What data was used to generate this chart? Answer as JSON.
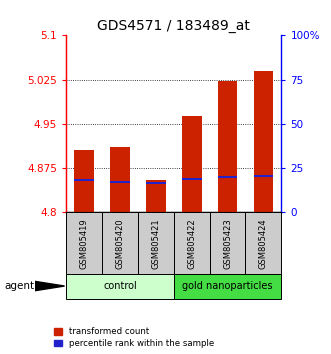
{
  "title": "GDS4571 / 183489_at",
  "samples": [
    "GSM805419",
    "GSM805420",
    "GSM805421",
    "GSM805422",
    "GSM805423",
    "GSM805424"
  ],
  "bar_base": 4.8,
  "red_tops": [
    4.906,
    4.91,
    4.855,
    4.963,
    5.022,
    5.04
  ],
  "blue_vals": [
    4.855,
    4.852,
    4.85,
    4.856,
    4.86,
    4.862
  ],
  "ylim_min": 4.8,
  "ylim_max": 5.1,
  "yticks_left": [
    4.8,
    4.875,
    4.95,
    5.025,
    5.1
  ],
  "yticks_right_vals": [
    0,
    25,
    50,
    75,
    100
  ],
  "yticks_right_labels": [
    "0",
    "25",
    "50",
    "75",
    "100%"
  ],
  "grid_vals": [
    4.875,
    4.95,
    5.025
  ],
  "bar_width": 0.55,
  "red_color": "#cc2200",
  "blue_color": "#2222cc",
  "control_color": "#ccffcc",
  "nanoparticles_color": "#44dd44",
  "agent_label": "agent",
  "control_label": "control",
  "nanoparticles_label": "gold nanoparticles",
  "legend_red": "transformed count",
  "legend_blue": "percentile rank within the sample",
  "title_fontsize": 10,
  "tick_fontsize": 7.5,
  "label_fontsize": 7.5
}
